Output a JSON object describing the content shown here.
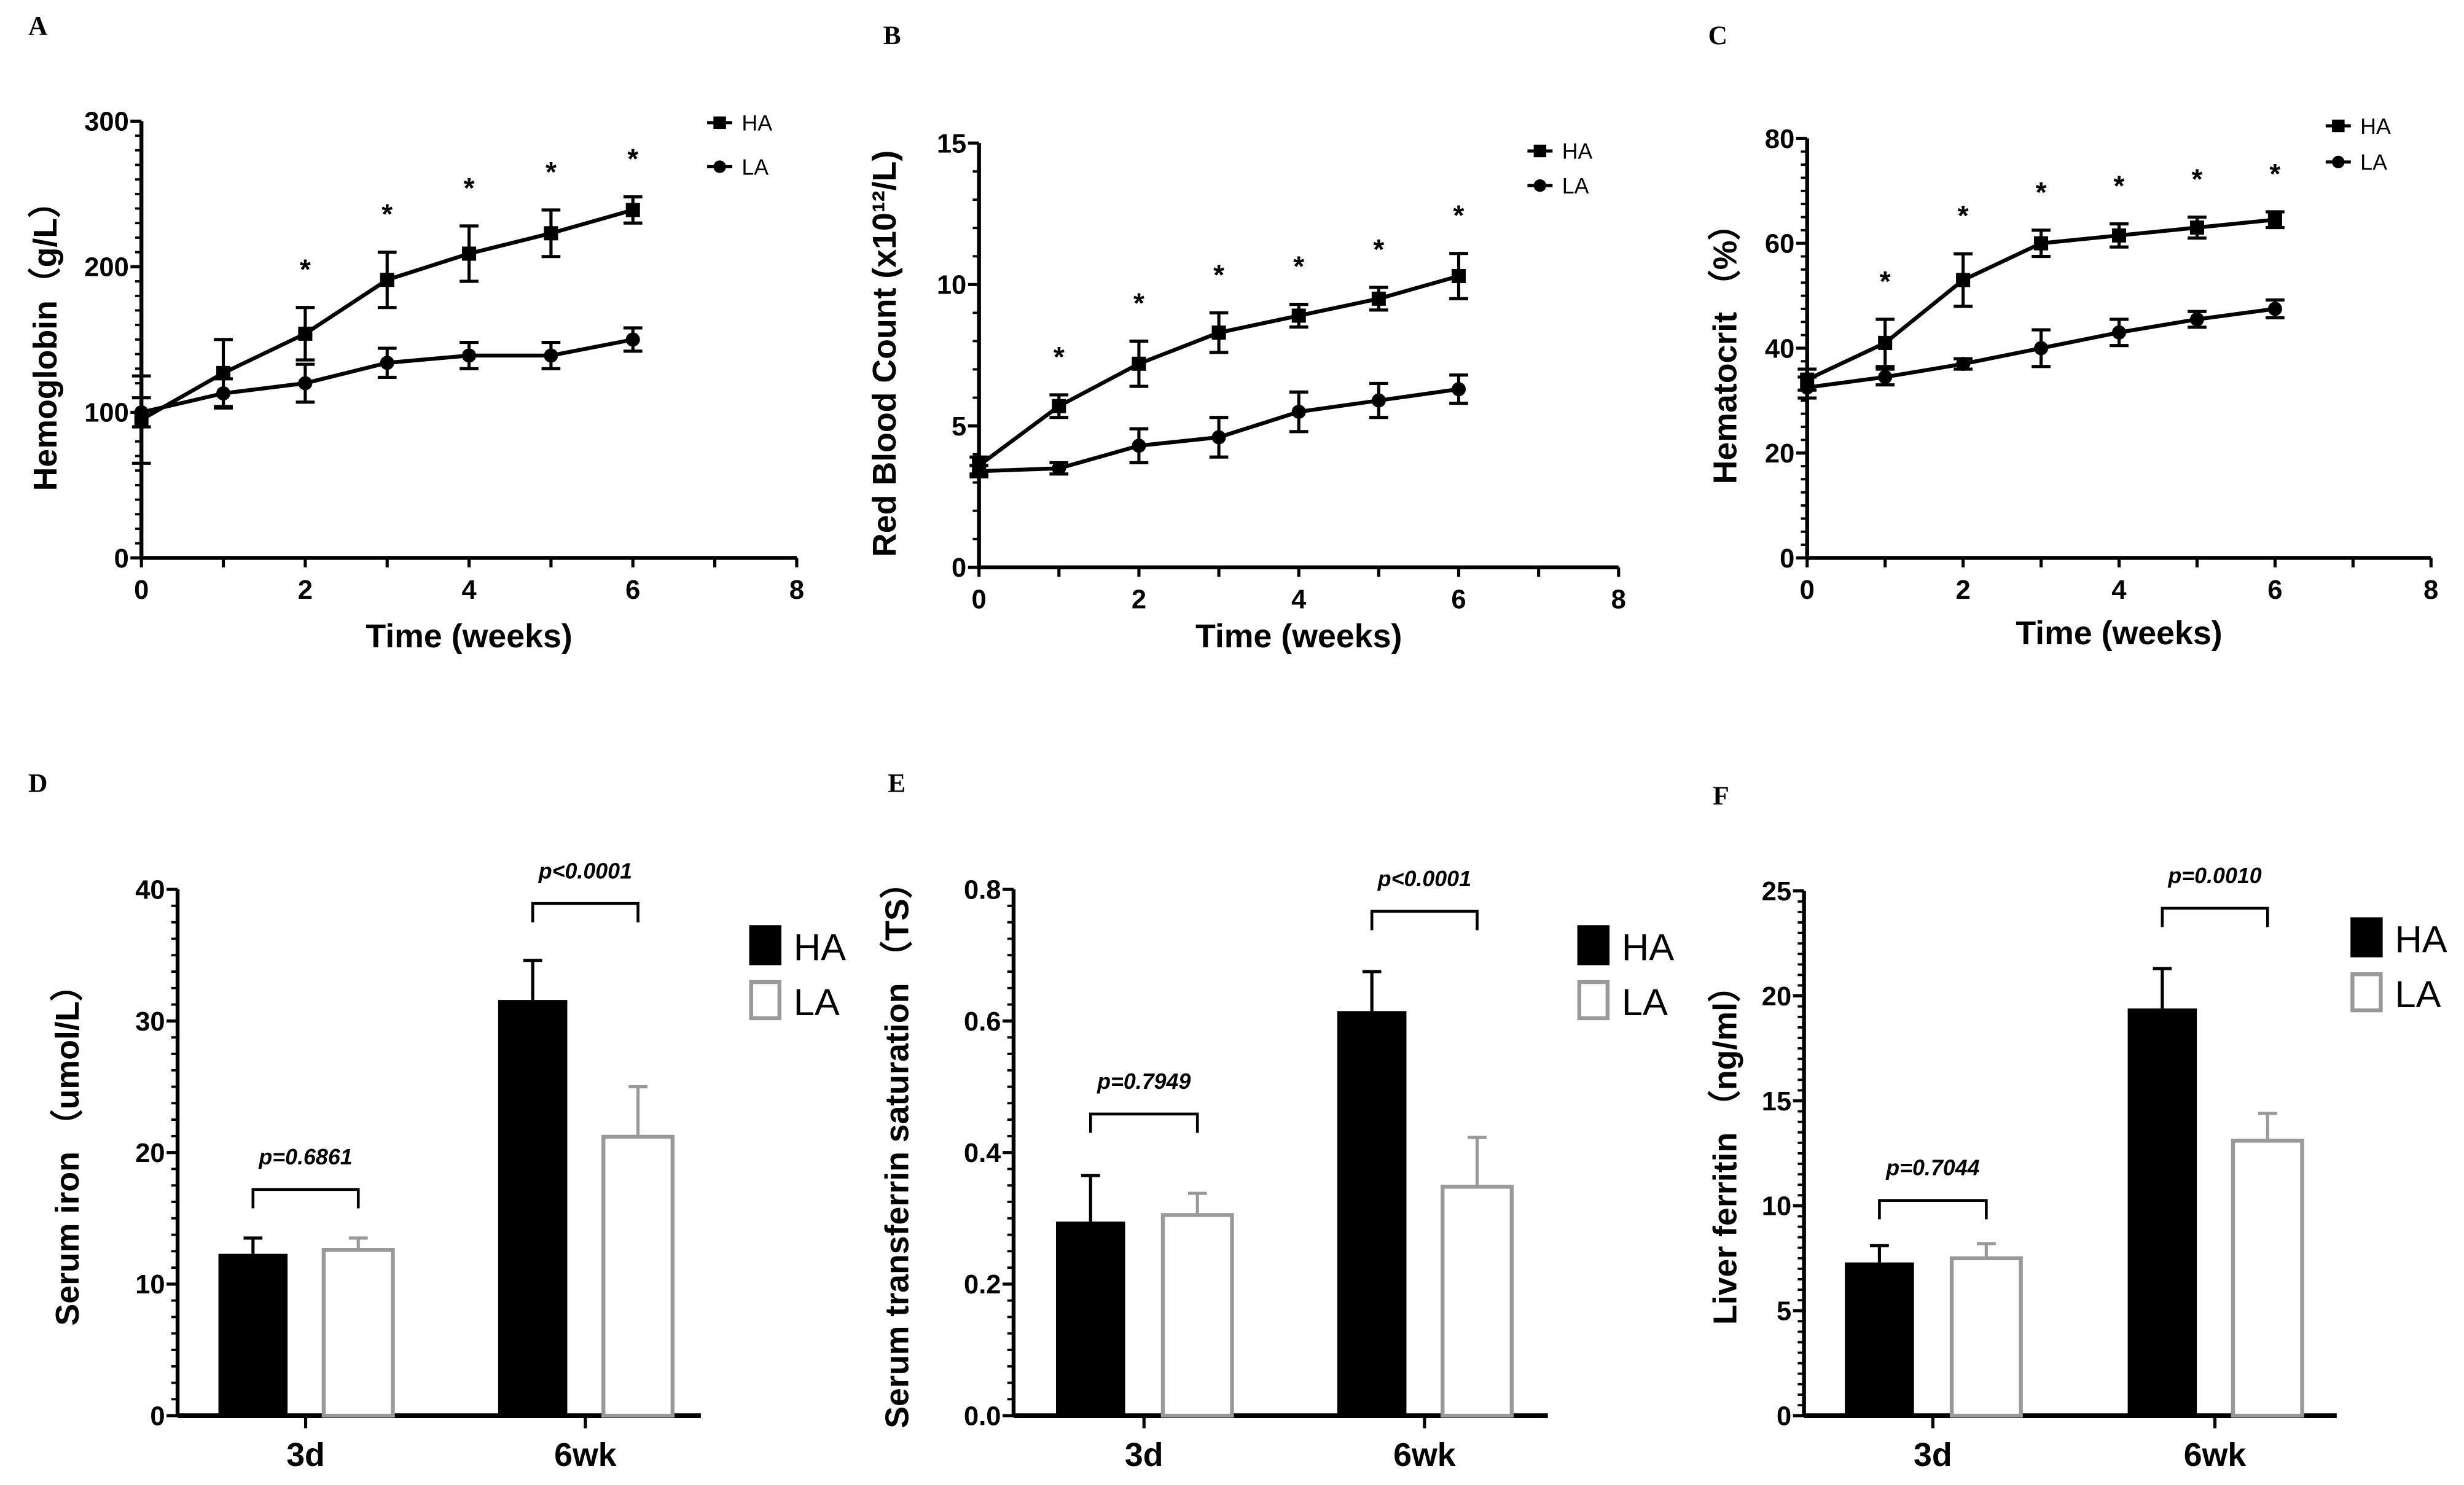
{
  "colors": {
    "ha": "#000000",
    "la_edge": "#999999",
    "la_fill": "#ffffff"
  },
  "chart_data": [
    {
      "panel": "A",
      "type": "line",
      "xlabel": "Time (weeks)",
      "ylabel": "Hemoglobin（g/L）",
      "xlim": [
        0,
        8
      ],
      "ylim": [
        0,
        300
      ],
      "xticks": [
        "0",
        "2",
        "4",
        "6",
        "8"
      ],
      "yticks": [
        "0",
        "100",
        "200",
        "300"
      ],
      "x": [
        0,
        1,
        2,
        3,
        4,
        5,
        6
      ],
      "series": [
        {
          "name": "HA",
          "marker": "square",
          "values": [
            95,
            127,
            154,
            191,
            209,
            223,
            239
          ],
          "err": [
            30,
            23,
            18,
            19,
            19,
            16,
            9
          ]
        },
        {
          "name": "LA",
          "marker": "circle",
          "values": [
            100,
            113,
            120,
            134,
            139,
            139,
            150
          ],
          "err": [
            10,
            10,
            13,
            10,
            9,
            9,
            8
          ]
        }
      ],
      "annotations": [
        {
          "x": 2,
          "text": "*"
        },
        {
          "x": 3,
          "text": "*"
        },
        {
          "x": 4,
          "text": "*"
        },
        {
          "x": 5,
          "text": "*"
        },
        {
          "x": 6,
          "text": "*"
        }
      ],
      "legend": "top-right"
    },
    {
      "panel": "B",
      "type": "line",
      "xlabel": "Time (weeks)",
      "ylabel": "Red Blood Count (x10¹²/L)",
      "xlim": [
        0,
        8
      ],
      "ylim": [
        0,
        15
      ],
      "xticks": [
        "0",
        "2",
        "4",
        "6",
        "8"
      ],
      "yticks": [
        "0",
        "5",
        "10",
        "15"
      ],
      "x": [
        0,
        1,
        2,
        3,
        4,
        5,
        6
      ],
      "series": [
        {
          "name": "HA",
          "marker": "square",
          "values": [
            3.6,
            5.7,
            7.2,
            8.3,
            8.9,
            9.5,
            10.3
          ],
          "err": [
            0.3,
            0.4,
            0.8,
            0.7,
            0.4,
            0.4,
            0.8
          ]
        },
        {
          "name": "LA",
          "marker": "circle",
          "values": [
            3.4,
            3.5,
            4.3,
            4.6,
            5.5,
            5.9,
            6.3
          ],
          "err": [
            0.2,
            0.2,
            0.6,
            0.7,
            0.7,
            0.6,
            0.5
          ]
        }
      ],
      "annotations": [
        {
          "x": 1,
          "text": "*"
        },
        {
          "x": 2,
          "text": "*"
        },
        {
          "x": 3,
          "text": "*"
        },
        {
          "x": 4,
          "text": "*"
        },
        {
          "x": 5,
          "text": "*"
        },
        {
          "x": 6,
          "text": "*"
        }
      ],
      "legend": "top-right"
    },
    {
      "panel": "C",
      "type": "line",
      "xlabel": "Time (weeks)",
      "ylabel": "Hematocrit （%）",
      "xlim": [
        0,
        8
      ],
      "ylim": [
        0,
        80
      ],
      "xticks": [
        "0",
        "2",
        "4",
        "6",
        "8"
      ],
      "yticks": [
        "0",
        "20",
        "40",
        "60",
        "80"
      ],
      "x": [
        0,
        1,
        2,
        3,
        4,
        5,
        6
      ],
      "series": [
        {
          "name": "HA",
          "marker": "square",
          "values": [
            34,
            41,
            53,
            60,
            61.5,
            63,
            64.5
          ],
          "err": [
            2,
            4.5,
            5,
            2.5,
            2.2,
            2,
            1.5
          ]
        },
        {
          "name": "LA",
          "marker": "circle",
          "values": [
            32.5,
            34.5,
            37,
            40,
            43,
            45.5,
            47.5
          ],
          "err": [
            2,
            1.5,
            1,
            3.5,
            2.5,
            1.5,
            1.7
          ]
        }
      ],
      "annotations": [
        {
          "x": 1,
          "text": "*"
        },
        {
          "x": 2,
          "text": "*"
        },
        {
          "x": 3,
          "text": "*"
        },
        {
          "x": 4,
          "text": "*"
        },
        {
          "x": 5,
          "text": "*"
        },
        {
          "x": 6,
          "text": "*"
        }
      ],
      "legend": "top-right"
    },
    {
      "panel": "D",
      "type": "bar",
      "ylabel": "Serum iron （umol/L）",
      "ylim": [
        0,
        40
      ],
      "yticks": [
        "0",
        "10",
        "20",
        "30",
        "40"
      ],
      "categories": [
        "3d",
        "6wk"
      ],
      "series": [
        {
          "name": "HA",
          "values": [
            12.3,
            31.6
          ],
          "err": [
            1.2,
            3.0
          ]
        },
        {
          "name": "LA",
          "values": [
            12.6,
            21.2
          ],
          "err": [
            0.9,
            3.8
          ]
        }
      ],
      "pvalues": [
        "p=0.6861",
        "p<0.0001"
      ],
      "legend": "right"
    },
    {
      "panel": "E",
      "type": "bar",
      "ylabel": "Serum transferrin saturation （TS）",
      "ylim": [
        0,
        0.8
      ],
      "yticks": [
        "0.0",
        "0.2",
        "0.4",
        "0.6",
        "0.8"
      ],
      "categories": [
        "3d",
        "6wk"
      ],
      "series": [
        {
          "name": "HA",
          "values": [
            0.295,
            0.615
          ],
          "err": [
            0.07,
            0.06
          ]
        },
        {
          "name": "LA",
          "values": [
            0.305,
            0.348
          ],
          "err": [
            0.033,
            0.075
          ]
        }
      ],
      "pvalues": [
        "p=0.7949",
        "p<0.0001"
      ],
      "legend": "right"
    },
    {
      "panel": "F",
      "type": "bar",
      "ylabel": "Liver ferritin （ng/ml）",
      "ylim": [
        0,
        25
      ],
      "yticks": [
        "0",
        "5",
        "10",
        "15",
        "20",
        "25"
      ],
      "categories": [
        "3d",
        "6wk"
      ],
      "series": [
        {
          "name": "HA",
          "values": [
            7.3,
            19.4
          ],
          "err": [
            0.8,
            1.9
          ]
        },
        {
          "name": "LA",
          "values": [
            7.5,
            13.1
          ],
          "err": [
            0.7,
            1.3
          ]
        }
      ],
      "pvalues": [
        "p=0.7044",
        "p=0.0010"
      ],
      "legend": "right"
    }
  ]
}
